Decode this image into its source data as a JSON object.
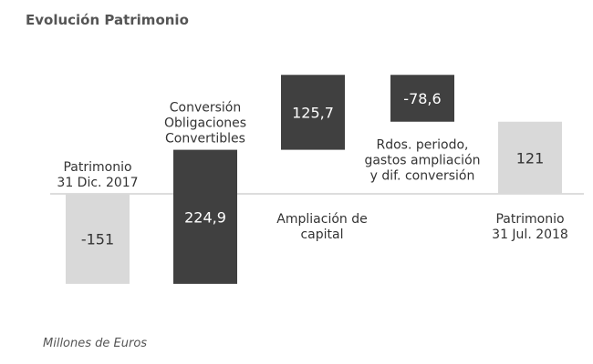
{
  "page": {
    "title": "Evolución Patrimonio",
    "unit_note": "Millones de Euros"
  },
  "chart_data": {
    "type": "bar",
    "subtype": "waterfall",
    "title": "Evolución Patrimonio",
    "unit": "Millones de Euros",
    "categories": [
      [
        "Patrimonio",
        "31 Dic. 2017"
      ],
      [
        "Conversión",
        "Obligaciones",
        "Convertibles"
      ],
      [
        "Ampliación de",
        "capital"
      ],
      [
        "Rdos. periodo,",
        "gastos ampliación",
        "y dif. conversión"
      ],
      [
        "Patrimonio",
        "31 Jul. 2018"
      ]
    ],
    "values": [
      -151,
      224.9,
      125.7,
      -78.6,
      121
    ],
    "value_labels": [
      "-151",
      "224,9",
      "125,7",
      "-78,6",
      "121"
    ],
    "bar_kinds": [
      "total",
      "change",
      "change",
      "change",
      "total"
    ],
    "colors": {
      "total": "#d9d9d9",
      "change": "#404040",
      "total_text": "#333333",
      "change_text": "#ffffff",
      "axis": "#bbbbbb"
    }
  }
}
